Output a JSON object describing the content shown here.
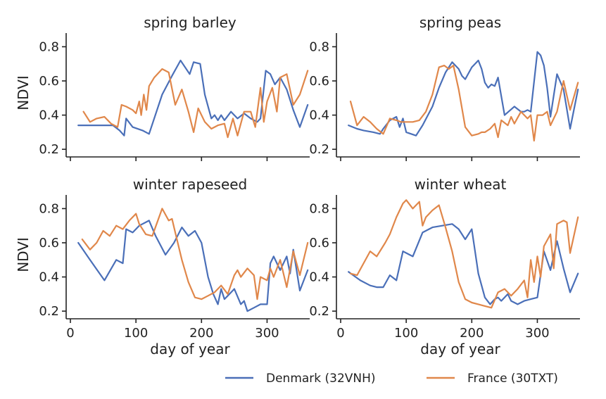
{
  "colors": {
    "denmark": "#4a6fb8",
    "france": "#e0874a",
    "axis": "#222222"
  },
  "legend": {
    "position": "bottom-right",
    "items": [
      {
        "label": "Denmark (32VNH)",
        "color": "#4a6fb8"
      },
      {
        "label": "France (30TXT)",
        "color": "#e0874a"
      }
    ]
  },
  "chart_data": [
    {
      "type": "line",
      "title": "spring barley",
      "xlabel": "",
      "ylabel": "NDVI",
      "xlim": [
        0,
        365
      ],
      "ylim": [
        0.18,
        0.88
      ],
      "xticks": [
        0,
        100,
        200,
        300
      ],
      "yticks": [
        0.2,
        0.4,
        0.6,
        0.8
      ],
      "grid": false,
      "series": [
        {
          "name": "Denmark (32VNH)",
          "color": "#4a6fb8",
          "x": [
            12,
            40,
            65,
            75,
            82,
            85,
            95,
            110,
            120,
            140,
            155,
            168,
            182,
            188,
            198,
            205,
            215,
            220,
            225,
            230,
            235,
            245,
            250,
            255,
            265,
            275,
            285,
            290,
            298,
            305,
            312,
            320,
            330,
            340,
            350,
            362
          ],
          "y": [
            0.34,
            0.34,
            0.34,
            0.31,
            0.28,
            0.38,
            0.33,
            0.31,
            0.29,
            0.52,
            0.63,
            0.72,
            0.64,
            0.71,
            0.7,
            0.52,
            0.38,
            0.4,
            0.37,
            0.4,
            0.37,
            0.42,
            0.4,
            0.38,
            0.41,
            0.38,
            0.36,
            0.38,
            0.66,
            0.64,
            0.58,
            0.62,
            0.55,
            0.43,
            0.33,
            0.46
          ]
        },
        {
          "name": "France (30TXT)",
          "color": "#e0874a",
          "x": [
            20,
            30,
            40,
            52,
            62,
            72,
            78,
            85,
            95,
            100,
            105,
            108,
            112,
            116,
            120,
            128,
            140,
            150,
            160,
            170,
            180,
            188,
            195,
            205,
            215,
            225,
            235,
            240,
            248,
            255,
            265,
            275,
            282,
            290,
            295,
            300,
            308,
            315,
            320,
            330,
            340,
            350,
            362
          ],
          "y": [
            0.42,
            0.36,
            0.38,
            0.39,
            0.35,
            0.33,
            0.46,
            0.45,
            0.43,
            0.41,
            0.48,
            0.4,
            0.52,
            0.43,
            0.57,
            0.62,
            0.67,
            0.65,
            0.46,
            0.55,
            0.42,
            0.3,
            0.44,
            0.36,
            0.32,
            0.34,
            0.35,
            0.27,
            0.38,
            0.28,
            0.42,
            0.42,
            0.33,
            0.56,
            0.36,
            0.48,
            0.56,
            0.42,
            0.62,
            0.64,
            0.46,
            0.52,
            0.66
          ]
        }
      ]
    },
    {
      "type": "line",
      "title": "spring peas",
      "xlabel": "",
      "ylabel": "",
      "xlim": [
        0,
        365
      ],
      "ylim": [
        0.18,
        0.88
      ],
      "xticks": [
        0,
        100,
        200,
        300
      ],
      "yticks": [
        0.2,
        0.4,
        0.6,
        0.8
      ],
      "grid": false,
      "series": [
        {
          "name": "Denmark (32VNH)",
          "color": "#4a6fb8",
          "x": [
            12,
            25,
            35,
            50,
            60,
            65,
            75,
            85,
            90,
            95,
            100,
            115,
            125,
            140,
            150,
            160,
            170,
            180,
            185,
            190,
            200,
            210,
            215,
            220,
            225,
            230,
            235,
            240,
            250,
            265,
            275,
            280,
            285,
            290,
            300,
            305,
            310,
            315,
            320,
            330,
            340,
            350,
            362
          ],
          "y": [
            0.34,
            0.32,
            0.31,
            0.3,
            0.29,
            0.32,
            0.37,
            0.39,
            0.33,
            0.38,
            0.3,
            0.28,
            0.34,
            0.45,
            0.56,
            0.65,
            0.71,
            0.67,
            0.63,
            0.61,
            0.68,
            0.72,
            0.67,
            0.59,
            0.56,
            0.58,
            0.57,
            0.62,
            0.4,
            0.45,
            0.42,
            0.42,
            0.43,
            0.42,
            0.77,
            0.75,
            0.69,
            0.56,
            0.39,
            0.64,
            0.55,
            0.32,
            0.55
          ]
        },
        {
          "name": "France (30TXT)",
          "color": "#e0874a",
          "x": [
            15,
            25,
            35,
            45,
            55,
            65,
            75,
            85,
            92,
            100,
            110,
            120,
            130,
            140,
            150,
            158,
            165,
            172,
            180,
            190,
            200,
            210,
            215,
            220,
            228,
            235,
            240,
            245,
            255,
            260,
            265,
            275,
            285,
            290,
            295,
            300,
            308,
            315,
            320,
            330,
            340,
            350,
            362
          ],
          "y": [
            0.48,
            0.34,
            0.39,
            0.36,
            0.32,
            0.29,
            0.38,
            0.37,
            0.36,
            0.36,
            0.36,
            0.37,
            0.42,
            0.52,
            0.68,
            0.69,
            0.67,
            0.69,
            0.55,
            0.33,
            0.28,
            0.29,
            0.3,
            0.3,
            0.32,
            0.35,
            0.27,
            0.37,
            0.34,
            0.39,
            0.35,
            0.42,
            0.38,
            0.4,
            0.25,
            0.4,
            0.4,
            0.42,
            0.34,
            0.42,
            0.6,
            0.43,
            0.59
          ]
        }
      ]
    },
    {
      "type": "line",
      "title": "winter rapeseed",
      "xlabel": "day of year",
      "ylabel": "NDVI",
      "xlim": [
        0,
        365
      ],
      "ylim": [
        0.18,
        0.88
      ],
      "xticks": [
        0,
        100,
        200,
        300
      ],
      "yticks": [
        0.2,
        0.4,
        0.6,
        0.8
      ],
      "grid": false,
      "series": [
        {
          "name": "Denmark (32VNH)",
          "color": "#4a6fb8",
          "x": [
            12,
            30,
            52,
            70,
            80,
            85,
            95,
            105,
            115,
            120,
            130,
            145,
            158,
            170,
            180,
            190,
            200,
            210,
            218,
            225,
            230,
            235,
            240,
            250,
            260,
            265,
            270,
            280,
            290,
            300,
            305,
            310,
            320,
            330,
            335,
            340,
            350,
            362
          ],
          "y": [
            0.6,
            0.5,
            0.38,
            0.5,
            0.48,
            0.68,
            0.66,
            0.7,
            0.72,
            0.73,
            0.64,
            0.53,
            0.6,
            0.69,
            0.64,
            0.67,
            0.6,
            0.4,
            0.3,
            0.24,
            0.33,
            0.27,
            0.29,
            0.33,
            0.24,
            0.26,
            0.2,
            0.22,
            0.24,
            0.24,
            0.48,
            0.52,
            0.44,
            0.52,
            0.42,
            0.56,
            0.32,
            0.44
          ]
        },
        {
          "name": "France (30TXT)",
          "color": "#e0874a",
          "x": [
            18,
            30,
            40,
            50,
            60,
            70,
            80,
            90,
            100,
            105,
            115,
            125,
            140,
            150,
            155,
            160,
            170,
            180,
            190,
            200,
            210,
            220,
            230,
            240,
            250,
            255,
            260,
            270,
            280,
            285,
            290,
            300,
            305,
            310,
            320,
            330,
            340,
            350,
            362
          ],
          "y": [
            0.62,
            0.56,
            0.6,
            0.67,
            0.64,
            0.7,
            0.68,
            0.73,
            0.77,
            0.71,
            0.65,
            0.64,
            0.8,
            0.73,
            0.74,
            0.66,
            0.5,
            0.37,
            0.28,
            0.27,
            0.29,
            0.31,
            0.35,
            0.3,
            0.41,
            0.44,
            0.4,
            0.45,
            0.41,
            0.27,
            0.4,
            0.38,
            0.45,
            0.4,
            0.5,
            0.34,
            0.55,
            0.41,
            0.6
          ]
        }
      ]
    },
    {
      "type": "line",
      "title": "winter wheat",
      "xlabel": "day of year",
      "ylabel": "",
      "xlim": [
        0,
        365
      ],
      "ylim": [
        0.18,
        0.88
      ],
      "xticks": [
        0,
        100,
        200,
        300
      ],
      "yticks": [
        0.2,
        0.4,
        0.6,
        0.8
      ],
      "grid": false,
      "series": [
        {
          "name": "Denmark (32VNH)",
          "color": "#4a6fb8",
          "x": [
            12,
            30,
            45,
            55,
            65,
            75,
            85,
            95,
            110,
            125,
            140,
            155,
            170,
            180,
            190,
            200,
            210,
            220,
            228,
            235,
            240,
            245,
            255,
            260,
            270,
            280,
            290,
            300,
            310,
            320,
            330,
            340,
            350,
            362
          ],
          "y": [
            0.43,
            0.38,
            0.35,
            0.34,
            0.34,
            0.41,
            0.38,
            0.55,
            0.52,
            0.66,
            0.69,
            0.7,
            0.71,
            0.68,
            0.62,
            0.68,
            0.42,
            0.28,
            0.24,
            0.27,
            0.28,
            0.26,
            0.3,
            0.26,
            0.24,
            0.26,
            0.27,
            0.28,
            0.55,
            0.44,
            0.61,
            0.45,
            0.31,
            0.42
          ]
        },
        {
          "name": "France (30TXT)",
          "color": "#e0874a",
          "x": [
            15,
            25,
            35,
            45,
            55,
            68,
            75,
            85,
            95,
            100,
            110,
            120,
            125,
            130,
            140,
            150,
            160,
            170,
            180,
            190,
            200,
            210,
            220,
            230,
            240,
            250,
            260,
            270,
            280,
            285,
            290,
            295,
            300,
            305,
            310,
            320,
            325,
            330,
            340,
            345,
            350,
            362
          ],
          "y": [
            0.42,
            0.41,
            0.48,
            0.55,
            0.52,
            0.6,
            0.65,
            0.75,
            0.83,
            0.85,
            0.8,
            0.84,
            0.7,
            0.75,
            0.79,
            0.82,
            0.69,
            0.55,
            0.37,
            0.27,
            0.25,
            0.24,
            0.23,
            0.22,
            0.31,
            0.33,
            0.29,
            0.33,
            0.38,
            0.28,
            0.5,
            0.37,
            0.52,
            0.4,
            0.58,
            0.65,
            0.45,
            0.71,
            0.73,
            0.72,
            0.54,
            0.75
          ]
        }
      ]
    }
  ]
}
